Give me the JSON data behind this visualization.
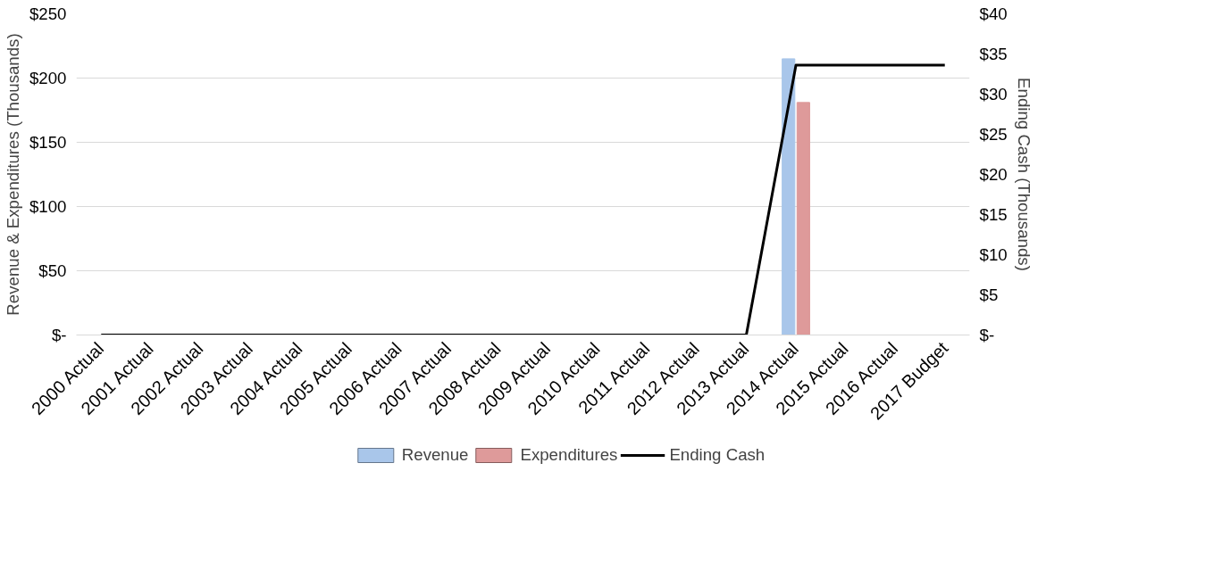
{
  "chart_data": {
    "type": "bar",
    "categories": [
      "2000 Actual",
      "2001 Actual",
      "2002 Actual",
      "2003 Actual",
      "2004 Actual",
      "2005 Actual",
      "2006 Actual",
      "2007 Actual",
      "2008 Actual",
      "2009 Actual",
      "2010 Actual",
      "2011 Actual",
      "2012 Actual",
      "2013 Actual",
      "2014 Actual",
      "2015 Actual",
      "2016 Actual",
      "2017 Budget"
    ],
    "series": [
      {
        "name": "Revenue",
        "color": "#a9c6ea",
        "values": [
          null,
          null,
          null,
          null,
          null,
          null,
          null,
          null,
          null,
          null,
          null,
          null,
          null,
          null,
          215,
          0,
          null,
          null
        ]
      },
      {
        "name": "Expenditures",
        "color": "#de9a9a",
        "values": [
          null,
          null,
          null,
          null,
          null,
          null,
          null,
          null,
          null,
          null,
          null,
          null,
          null,
          null,
          181,
          0,
          null,
          null
        ]
      },
      {
        "name": "Ending Cash",
        "type": "line",
        "axis": "y2",
        "color": "#000000",
        "values": [
          0,
          0,
          0,
          0,
          0,
          0,
          0,
          0,
          0,
          0,
          0,
          0,
          0,
          0,
          33.6,
          33.6,
          33.6,
          33.6
        ]
      }
    ],
    "ylabel": "Revenue & Expenditures (Thousands)",
    "y2label": "Ending Cash (Thousands)",
    "ylim": [
      0,
      250
    ],
    "yticks": [
      {
        "value": 0,
        "label": "$-"
      },
      {
        "value": 50,
        "label": "$50"
      },
      {
        "value": 100,
        "label": "$100"
      },
      {
        "value": 150,
        "label": "$150"
      },
      {
        "value": 200,
        "label": "$200"
      },
      {
        "value": 250,
        "label": "$250"
      }
    ],
    "y2lim": [
      0,
      40
    ],
    "y2ticks": [
      {
        "value": 0,
        "label": "$-"
      },
      {
        "value": 5,
        "label": "$5"
      },
      {
        "value": 10,
        "label": "$10"
      },
      {
        "value": 15,
        "label": "$15"
      },
      {
        "value": 20,
        "label": "$20"
      },
      {
        "value": 25,
        "label": "$25"
      },
      {
        "value": 30,
        "label": "$30"
      },
      {
        "value": 35,
        "label": "$35"
      },
      {
        "value": 40,
        "label": "$40"
      }
    ],
    "grid": "y",
    "legend": "bottom",
    "marker": "none",
    "line_style": "solid"
  }
}
